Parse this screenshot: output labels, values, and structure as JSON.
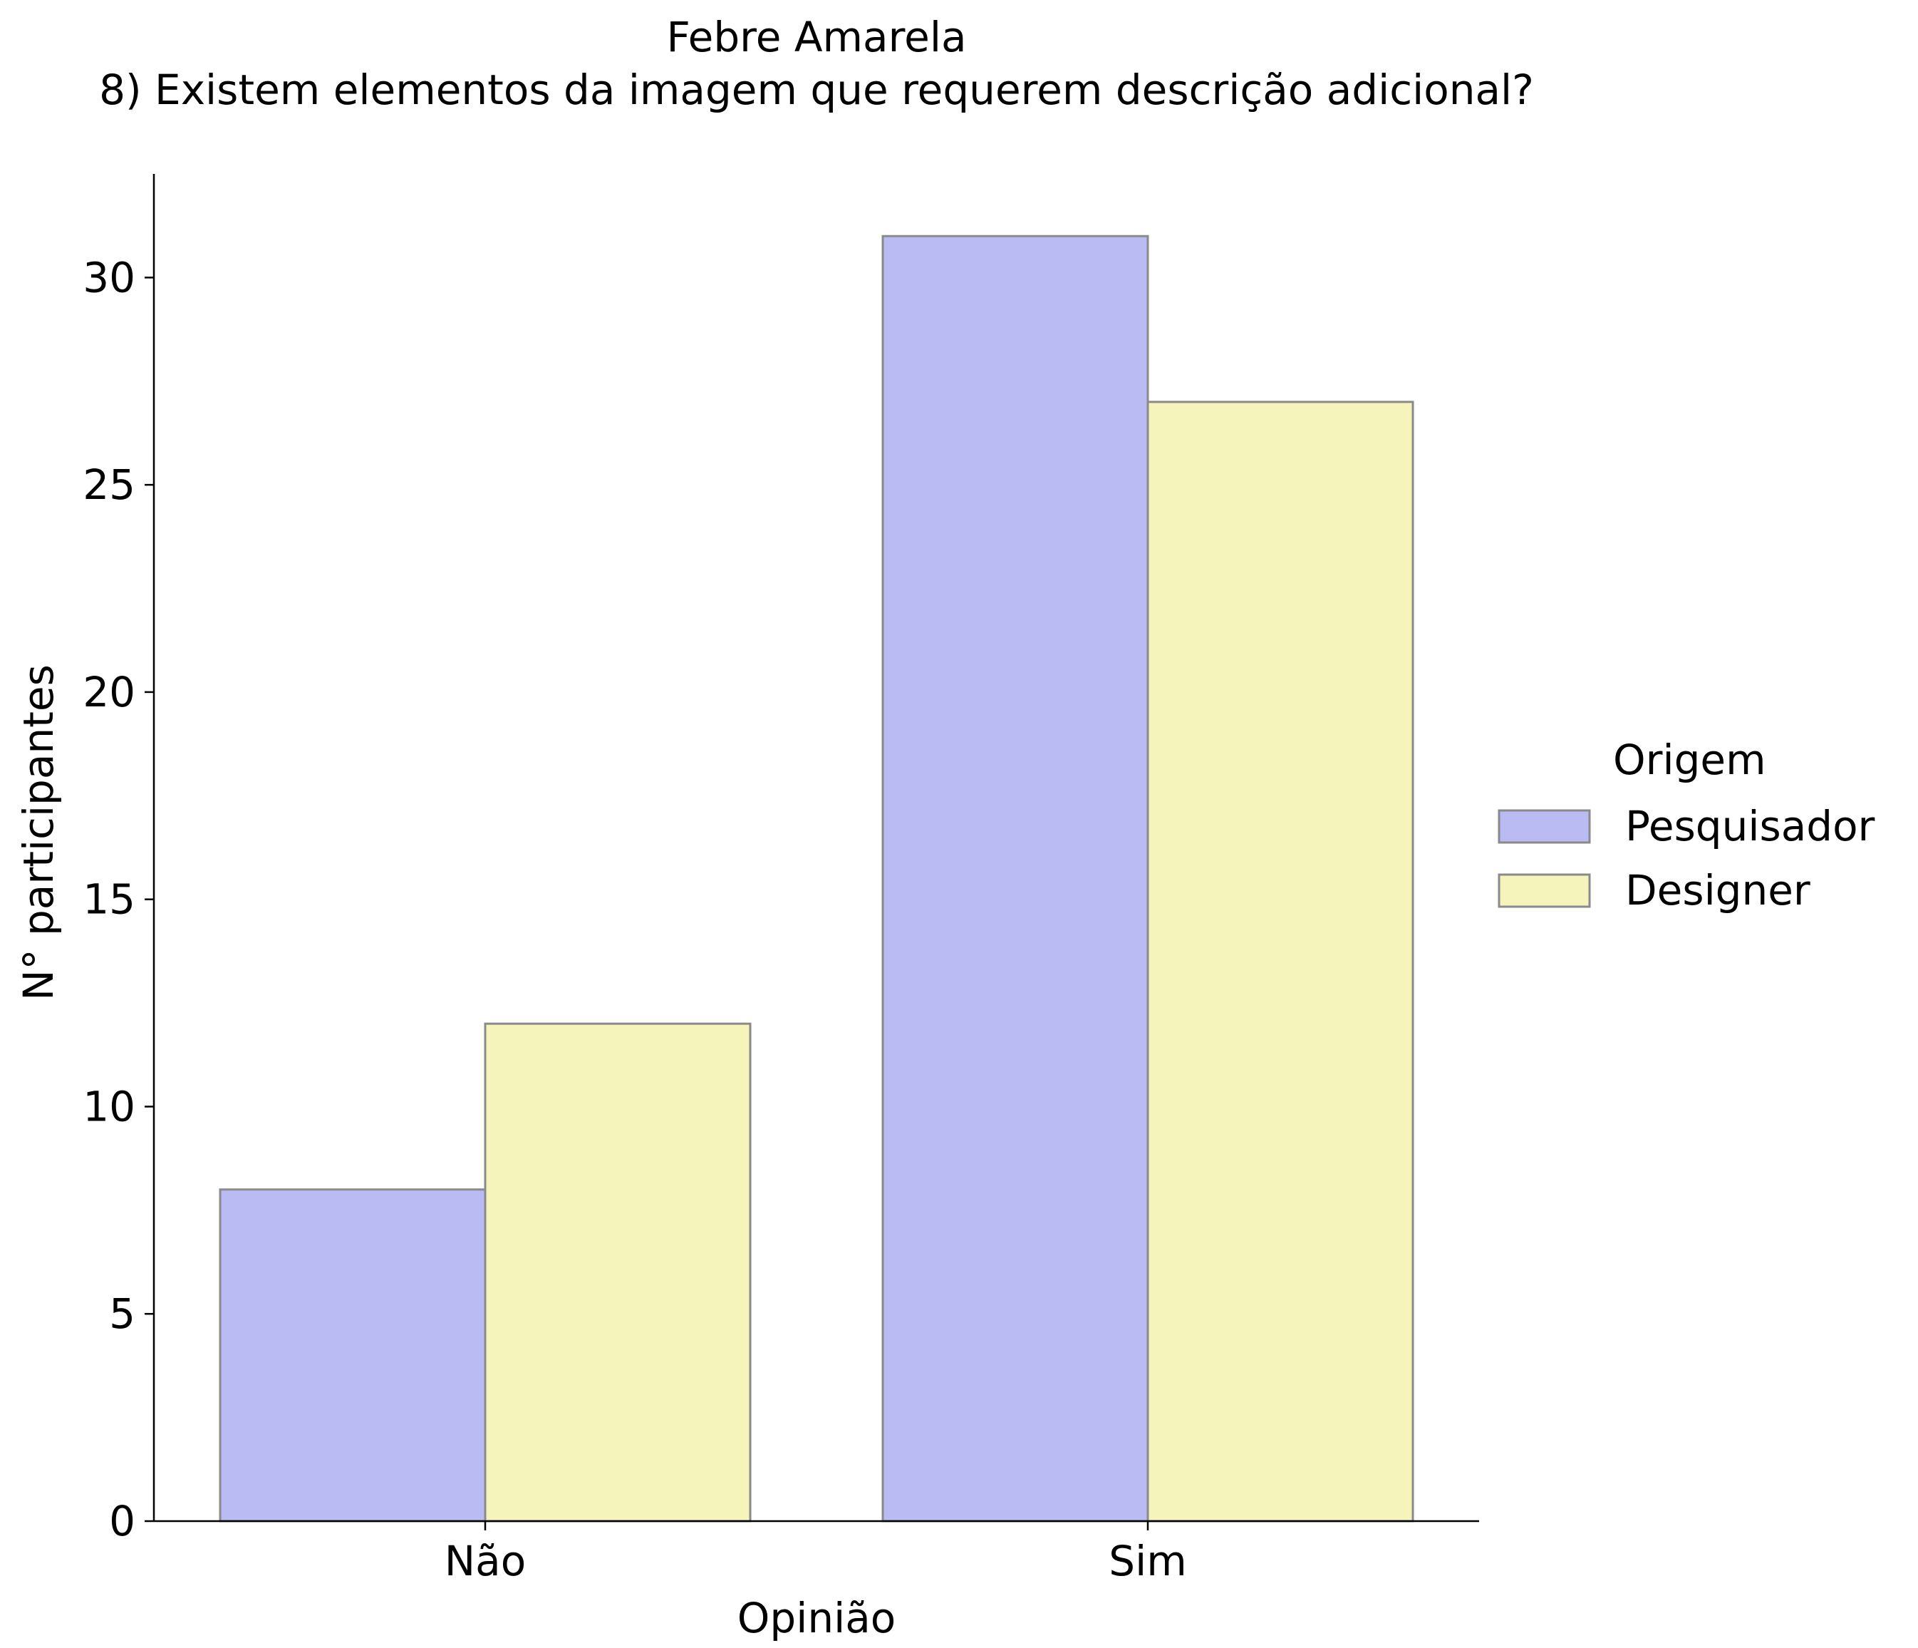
{
  "chart_data": {
    "type": "bar",
    "title": "Febre Amarela",
    "subtitle": "8) Existem elementos da imagem que requerem descrição adicional?",
    "xlabel": "Opinião",
    "ylabel": "N° participantes",
    "categories": [
      "Não",
      "Sim"
    ],
    "series": [
      {
        "name": "Pesquisador",
        "values": [
          8,
          31
        ],
        "color": "#bbbbf4"
      },
      {
        "name": "Designer",
        "values": [
          12,
          27
        ],
        "color": "#f4f4bb"
      }
    ],
    "ylim": [
      0,
      32.5
    ],
    "yticks": [
      0,
      5,
      10,
      15,
      20,
      25,
      30
    ],
    "legend": {
      "title": "Origem",
      "position": "right"
    },
    "grid": false
  }
}
